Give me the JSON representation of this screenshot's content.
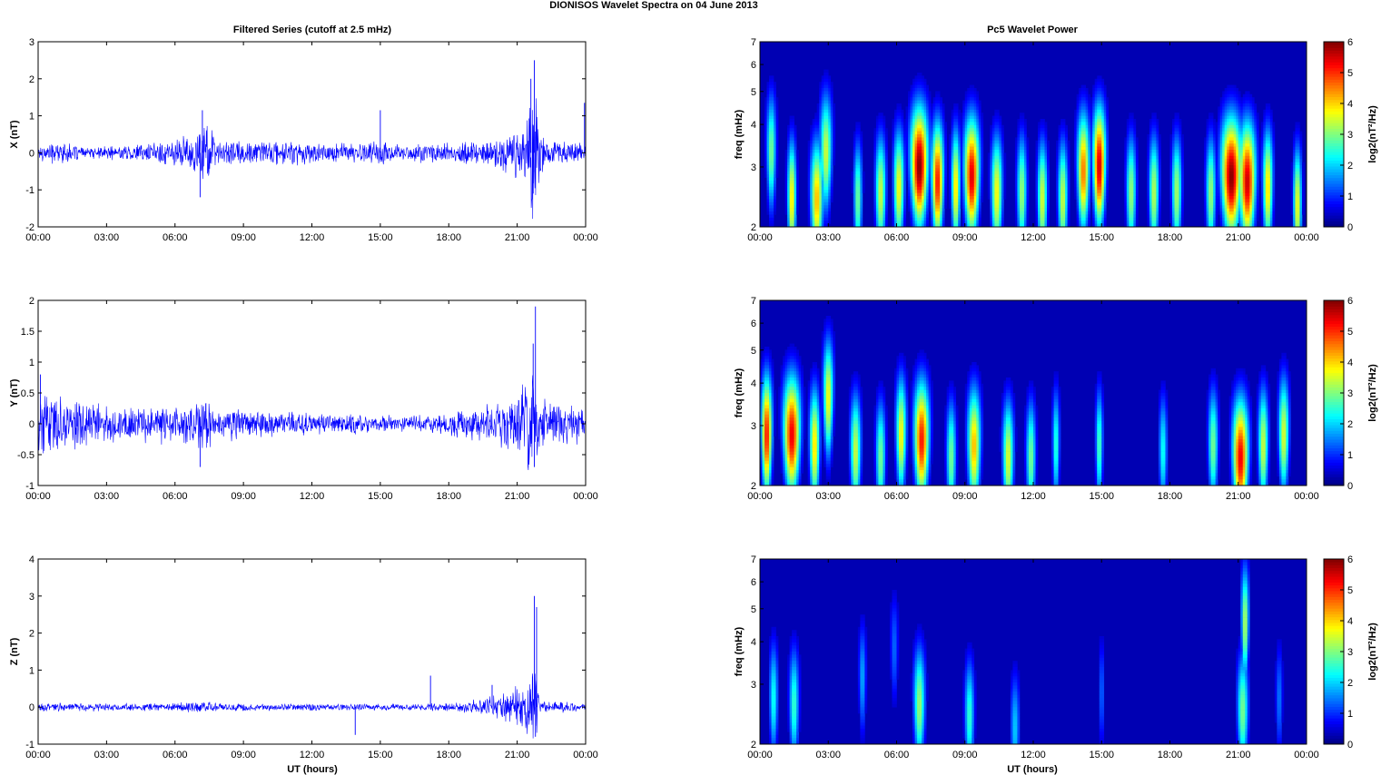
{
  "figure": {
    "title": "DIONISOS Wavelet Spectra on 04 June      2013",
    "left_column_title": "Filtered Series (cutoff at 2.5 mHz)",
    "right_column_title": "Pc5 Wavelet Power",
    "x_label": "UT (hours)"
  },
  "chart_data": [
    {
      "type": "line",
      "component": "X",
      "ylabel": "X (nT)",
      "xlim": [
        "00:00",
        "00:00"
      ],
      "x_ticks": [
        "00:00",
        "03:00",
        "06:00",
        "09:00",
        "12:00",
        "15:00",
        "18:00",
        "21:00",
        "00:00"
      ],
      "ylim": [
        -2,
        3
      ],
      "y_ticks": [
        "-2",
        "-1",
        "0",
        "1",
        "2",
        "3"
      ],
      "color": "#0000ff",
      "envelope": [
        {
          "hour": 0,
          "amp": 0.25
        },
        {
          "hour": 1,
          "amp": 0.35
        },
        {
          "hour": 2,
          "amp": 0.15
        },
        {
          "hour": 3,
          "amp": 0.2
        },
        {
          "hour": 4,
          "amp": 0.25
        },
        {
          "hour": 5,
          "amp": 0.3
        },
        {
          "hour": 6,
          "amp": 0.45
        },
        {
          "hour": 7,
          "amp": 0.7
        },
        {
          "hour": 7.2,
          "amp": 1.1
        },
        {
          "hour": 8,
          "amp": 0.35
        },
        {
          "hour": 9,
          "amp": 0.4
        },
        {
          "hour": 10,
          "amp": 0.35
        },
        {
          "hour": 11,
          "amp": 0.4
        },
        {
          "hour": 12,
          "amp": 0.35
        },
        {
          "hour": 13,
          "amp": 0.3
        },
        {
          "hour": 14,
          "amp": 0.3
        },
        {
          "hour": 15,
          "amp": 0.35
        },
        {
          "hour": 16,
          "amp": 0.25
        },
        {
          "hour": 17,
          "amp": 0.3
        },
        {
          "hour": 18,
          "amp": 0.3
        },
        {
          "hour": 19,
          "amp": 0.35
        },
        {
          "hour": 20,
          "amp": 0.45
        },
        {
          "hour": 21,
          "amp": 0.8
        },
        {
          "hour": 21.5,
          "amp": 1.2
        },
        {
          "hour": 21.8,
          "amp": 2.2
        },
        {
          "hour": 22,
          "amp": 0.6
        },
        {
          "hour": 23,
          "amp": 0.3
        },
        {
          "hour": 24,
          "amp": 0.3
        }
      ],
      "peaks": [
        {
          "hour": 7.1,
          "value": -1.2
        },
        {
          "hour": 7.2,
          "value": 1.15
        },
        {
          "hour": 15.0,
          "value": 1.15
        },
        {
          "hour": 21.6,
          "value": 2.0
        },
        {
          "hour": 21.75,
          "value": 2.5
        },
        {
          "hour": 21.7,
          "value": -1.1
        },
        {
          "hour": 23.95,
          "value": 1.35
        }
      ]
    },
    {
      "type": "line",
      "component": "Y",
      "ylabel": "Y (nT)",
      "xlim": [
        "00:00",
        "00:00"
      ],
      "x_ticks": [
        "00:00",
        "03:00",
        "06:00",
        "09:00",
        "12:00",
        "15:00",
        "18:00",
        "21:00",
        "00:00"
      ],
      "ylim": [
        -1,
        2
      ],
      "y_ticks": [
        "-1",
        "-0.5",
        "0",
        "0.5",
        "1",
        "1.5",
        "2"
      ],
      "color": "#0000ff",
      "envelope": [
        {
          "hour": 0,
          "amp": 0.5
        },
        {
          "hour": 1,
          "amp": 0.5
        },
        {
          "hour": 2,
          "amp": 0.4
        },
        {
          "hour": 3,
          "amp": 0.35
        },
        {
          "hour": 4,
          "amp": 0.3
        },
        {
          "hour": 5,
          "amp": 0.35
        },
        {
          "hour": 6,
          "amp": 0.4
        },
        {
          "hour": 7,
          "amp": 0.55
        },
        {
          "hour": 8,
          "amp": 0.3
        },
        {
          "hour": 9,
          "amp": 0.3
        },
        {
          "hour": 10,
          "amp": 0.25
        },
        {
          "hour": 11,
          "amp": 0.25
        },
        {
          "hour": 12,
          "amp": 0.2
        },
        {
          "hour": 13,
          "amp": 0.2
        },
        {
          "hour": 14,
          "amp": 0.2
        },
        {
          "hour": 15,
          "amp": 0.15
        },
        {
          "hour": 16,
          "amp": 0.15
        },
        {
          "hour": 17,
          "amp": 0.15
        },
        {
          "hour": 18,
          "amp": 0.2
        },
        {
          "hour": 19,
          "amp": 0.3
        },
        {
          "hour": 20,
          "amp": 0.4
        },
        {
          "hour": 21,
          "amp": 0.6
        },
        {
          "hour": 21.7,
          "amp": 1.0
        },
        {
          "hour": 22,
          "amp": 0.5
        },
        {
          "hour": 23,
          "amp": 0.35
        },
        {
          "hour": 24,
          "amp": 0.35
        }
      ],
      "peaks": [
        {
          "hour": 0.1,
          "value": 0.8
        },
        {
          "hour": 21.8,
          "value": 1.9
        },
        {
          "hour": 21.7,
          "value": 1.3
        },
        {
          "hour": 21.75,
          "value": -0.7
        },
        {
          "hour": 7.1,
          "value": -0.7
        }
      ]
    },
    {
      "type": "line",
      "component": "Z",
      "ylabel": "Z (nT)",
      "xlim": [
        "00:00",
        "00:00"
      ],
      "x_ticks": [
        "00:00",
        "03:00",
        "06:00",
        "09:00",
        "12:00",
        "15:00",
        "18:00",
        "21:00",
        "00:00"
      ],
      "ylim": [
        -1,
        4
      ],
      "y_ticks": [
        "-1",
        "0",
        "1",
        "2",
        "3",
        "4"
      ],
      "color": "#0000ff",
      "envelope": [
        {
          "hour": 0,
          "amp": 0.12
        },
        {
          "hour": 3,
          "amp": 0.12
        },
        {
          "hour": 6,
          "amp": 0.12
        },
        {
          "hour": 7,
          "amp": 0.2
        },
        {
          "hour": 8,
          "amp": 0.12
        },
        {
          "hour": 12,
          "amp": 0.1
        },
        {
          "hour": 16,
          "amp": 0.1
        },
        {
          "hour": 18,
          "amp": 0.12
        },
        {
          "hour": 19,
          "amp": 0.2
        },
        {
          "hour": 20,
          "amp": 0.35
        },
        {
          "hour": 21,
          "amp": 0.6
        },
        {
          "hour": 21.5,
          "amp": 1.0
        },
        {
          "hour": 21.8,
          "amp": 1.5
        },
        {
          "hour": 22,
          "amp": 0.2
        },
        {
          "hour": 24,
          "amp": 0.12
        }
      ],
      "peaks": [
        {
          "hour": 13.9,
          "value": -0.75
        },
        {
          "hour": 17.2,
          "value": 0.85
        },
        {
          "hour": 19.9,
          "value": 0.6
        },
        {
          "hour": 21.75,
          "value": 3.0
        },
        {
          "hour": 21.85,
          "value": 2.7
        },
        {
          "hour": 21.8,
          "value": -0.8
        }
      ]
    },
    {
      "type": "heatmap",
      "component": "X",
      "ylabel": "freq (mHz)",
      "xlim": [
        "00:00",
        "00:00"
      ],
      "x_ticks": [
        "00:00",
        "03:00",
        "06:00",
        "09:00",
        "12:00",
        "15:00",
        "18:00",
        "21:00",
        "00:00"
      ],
      "y_scale": "log",
      "ylim": [
        2,
        7
      ],
      "y_ticks": [
        "2",
        "3",
        "4",
        "5",
        "6",
        "7"
      ],
      "colorscale": "jet",
      "clim": [
        0,
        6
      ],
      "colorbar_ticks": [
        "0",
        "1",
        "2",
        "3",
        "4",
        "5",
        "6"
      ],
      "colorbar_label": "log2(nT²/Hz)",
      "blobs": [
        {
          "hour": 1.4,
          "freq": 2.4,
          "power": 4.0,
          "width_h": 0.12
        },
        {
          "hour": 2.5,
          "freq": 2.4,
          "power": 4.2,
          "width_h": 0.18
        },
        {
          "hour": 2.9,
          "freq": 3.3,
          "power": 3.5,
          "width_h": 0.15
        },
        {
          "hour": 4.3,
          "freq": 2.4,
          "power": 3.0,
          "width_h": 0.12
        },
        {
          "hour": 5.3,
          "freq": 2.5,
          "power": 3.5,
          "width_h": 0.15
        },
        {
          "hour": 6.1,
          "freq": 2.6,
          "power": 3.8,
          "width_h": 0.15
        },
        {
          "hour": 7.0,
          "freq": 3.0,
          "power": 6.0,
          "width_h": 0.22
        },
        {
          "hour": 7.8,
          "freq": 2.7,
          "power": 5.2,
          "width_h": 0.16
        },
        {
          "hour": 8.6,
          "freq": 2.6,
          "power": 4.0,
          "width_h": 0.12
        },
        {
          "hour": 9.3,
          "freq": 2.8,
          "power": 5.5,
          "width_h": 0.2
        },
        {
          "hour": 10.4,
          "freq": 2.5,
          "power": 3.8,
          "width_h": 0.16
        },
        {
          "hour": 11.5,
          "freq": 2.5,
          "power": 3.2,
          "width_h": 0.14
        },
        {
          "hour": 12.4,
          "freq": 2.4,
          "power": 3.6,
          "width_h": 0.14
        },
        {
          "hour": 13.3,
          "freq": 2.4,
          "power": 3.5,
          "width_h": 0.14
        },
        {
          "hour": 14.2,
          "freq": 2.9,
          "power": 4.6,
          "width_h": 0.16
        },
        {
          "hour": 14.9,
          "freq": 3.0,
          "power": 5.6,
          "width_h": 0.16
        },
        {
          "hour": 16.3,
          "freq": 2.5,
          "power": 3.2,
          "width_h": 0.14
        },
        {
          "hour": 17.3,
          "freq": 2.5,
          "power": 3.4,
          "width_h": 0.14
        },
        {
          "hour": 18.3,
          "freq": 2.5,
          "power": 3.3,
          "width_h": 0.14
        },
        {
          "hour": 19.8,
          "freq": 2.5,
          "power": 3.2,
          "width_h": 0.14
        },
        {
          "hour": 20.7,
          "freq": 2.8,
          "power": 6.0,
          "width_h": 0.26
        },
        {
          "hour": 21.4,
          "freq": 2.7,
          "power": 5.6,
          "width_h": 0.22
        },
        {
          "hour": 22.3,
          "freq": 2.6,
          "power": 4.0,
          "width_h": 0.14
        },
        {
          "hour": 23.6,
          "freq": 2.3,
          "power": 3.8,
          "width_h": 0.12
        },
        {
          "hour": 0.5,
          "freq": 3.3,
          "power": 3.0,
          "width_h": 0.12
        }
      ]
    },
    {
      "type": "heatmap",
      "component": "Y",
      "ylabel": "freq (mHz)",
      "xlim": [
        "00:00",
        "00:00"
      ],
      "x_ticks": [
        "00:00",
        "03:00",
        "06:00",
        "09:00",
        "12:00",
        "15:00",
        "18:00",
        "21:00",
        "00:00"
      ],
      "y_scale": "log",
      "ylim": [
        2,
        7
      ],
      "y_ticks": [
        "2",
        "3",
        "4",
        "5",
        "6",
        "7"
      ],
      "colorscale": "jet",
      "clim": [
        0,
        6
      ],
      "colorbar_ticks": [
        "0",
        "1",
        "2",
        "3",
        "4",
        "5",
        "6"
      ],
      "colorbar_label": "log2(nT²/Hz)",
      "blobs": [
        {
          "hour": 0.3,
          "freq": 2.8,
          "power": 5.2,
          "width_h": 0.14
        },
        {
          "hour": 1.4,
          "freq": 2.8,
          "power": 5.4,
          "width_h": 0.22
        },
        {
          "hour": 2.4,
          "freq": 2.6,
          "power": 4.0,
          "width_h": 0.14
        },
        {
          "hour": 3.0,
          "freq": 3.6,
          "power": 3.8,
          "width_h": 0.12
        },
        {
          "hour": 4.2,
          "freq": 2.5,
          "power": 3.5,
          "width_h": 0.15
        },
        {
          "hour": 5.3,
          "freq": 2.4,
          "power": 3.0,
          "width_h": 0.14
        },
        {
          "hour": 6.2,
          "freq": 2.8,
          "power": 3.8,
          "width_h": 0.14
        },
        {
          "hour": 7.1,
          "freq": 2.7,
          "power": 5.2,
          "width_h": 0.2
        },
        {
          "hour": 8.4,
          "freq": 2.4,
          "power": 3.0,
          "width_h": 0.14
        },
        {
          "hour": 9.4,
          "freq": 2.6,
          "power": 4.2,
          "width_h": 0.18
        },
        {
          "hour": 10.9,
          "freq": 2.4,
          "power": 3.6,
          "width_h": 0.16
        },
        {
          "hour": 11.9,
          "freq": 2.4,
          "power": 3.0,
          "width_h": 0.14
        },
        {
          "hour": 13.0,
          "freq": 2.6,
          "power": 2.6,
          "width_h": 0.1
        },
        {
          "hour": 14.9,
          "freq": 2.6,
          "power": 2.8,
          "width_h": 0.1
        },
        {
          "hour": 17.7,
          "freq": 2.5,
          "power": 2.4,
          "width_h": 0.12
        },
        {
          "hour": 19.9,
          "freq": 2.6,
          "power": 3.0,
          "width_h": 0.14
        },
        {
          "hour": 21.1,
          "freq": 2.4,
          "power": 5.4,
          "width_h": 0.22
        },
        {
          "hour": 22.1,
          "freq": 2.6,
          "power": 3.5,
          "width_h": 0.14
        },
        {
          "hour": 23.0,
          "freq": 2.8,
          "power": 3.6,
          "width_h": 0.14
        }
      ]
    },
    {
      "type": "heatmap",
      "component": "Z",
      "ylabel": "freq (mHz)",
      "xlim": [
        "00:00",
        "00:00"
      ],
      "x_ticks": [
        "00:00",
        "03:00",
        "06:00",
        "09:00",
        "12:00",
        "15:00",
        "18:00",
        "21:00",
        "00:00"
      ],
      "y_scale": "log",
      "ylim": [
        2,
        7
      ],
      "y_ticks": [
        "2",
        "3",
        "4",
        "5",
        "6",
        "7"
      ],
      "colorscale": "jet",
      "clim": [
        0,
        6
      ],
      "colorbar_ticks": [
        "0",
        "1",
        "2",
        "3",
        "4",
        "5",
        "6"
      ],
      "colorbar_label": "log2(nT²/Hz)",
      "blobs": [
        {
          "hour": 0.6,
          "freq": 2.7,
          "power": 2.4,
          "width_h": 0.12
        },
        {
          "hour": 1.5,
          "freq": 2.6,
          "power": 2.6,
          "width_h": 0.14
        },
        {
          "hour": 4.5,
          "freq": 3.1,
          "power": 1.8,
          "width_h": 0.1
        },
        {
          "hour": 5.9,
          "freq": 3.8,
          "power": 1.4,
          "width_h": 0.1
        },
        {
          "hour": 7.0,
          "freq": 2.6,
          "power": 3.2,
          "width_h": 0.16
        },
        {
          "hour": 9.2,
          "freq": 2.4,
          "power": 2.6,
          "width_h": 0.14
        },
        {
          "hour": 11.2,
          "freq": 2.2,
          "power": 2.0,
          "width_h": 0.14
        },
        {
          "hour": 15.0,
          "freq": 2.8,
          "power": 1.4,
          "width_h": 0.08
        },
        {
          "hour": 21.2,
          "freq": 2.5,
          "power": 3.0,
          "width_h": 0.16
        },
        {
          "hour": 21.3,
          "freq": 4.5,
          "power": 3.4,
          "width_h": 0.08
        },
        {
          "hour": 22.8,
          "freq": 2.7,
          "power": 1.5,
          "width_h": 0.1
        }
      ]
    }
  ]
}
